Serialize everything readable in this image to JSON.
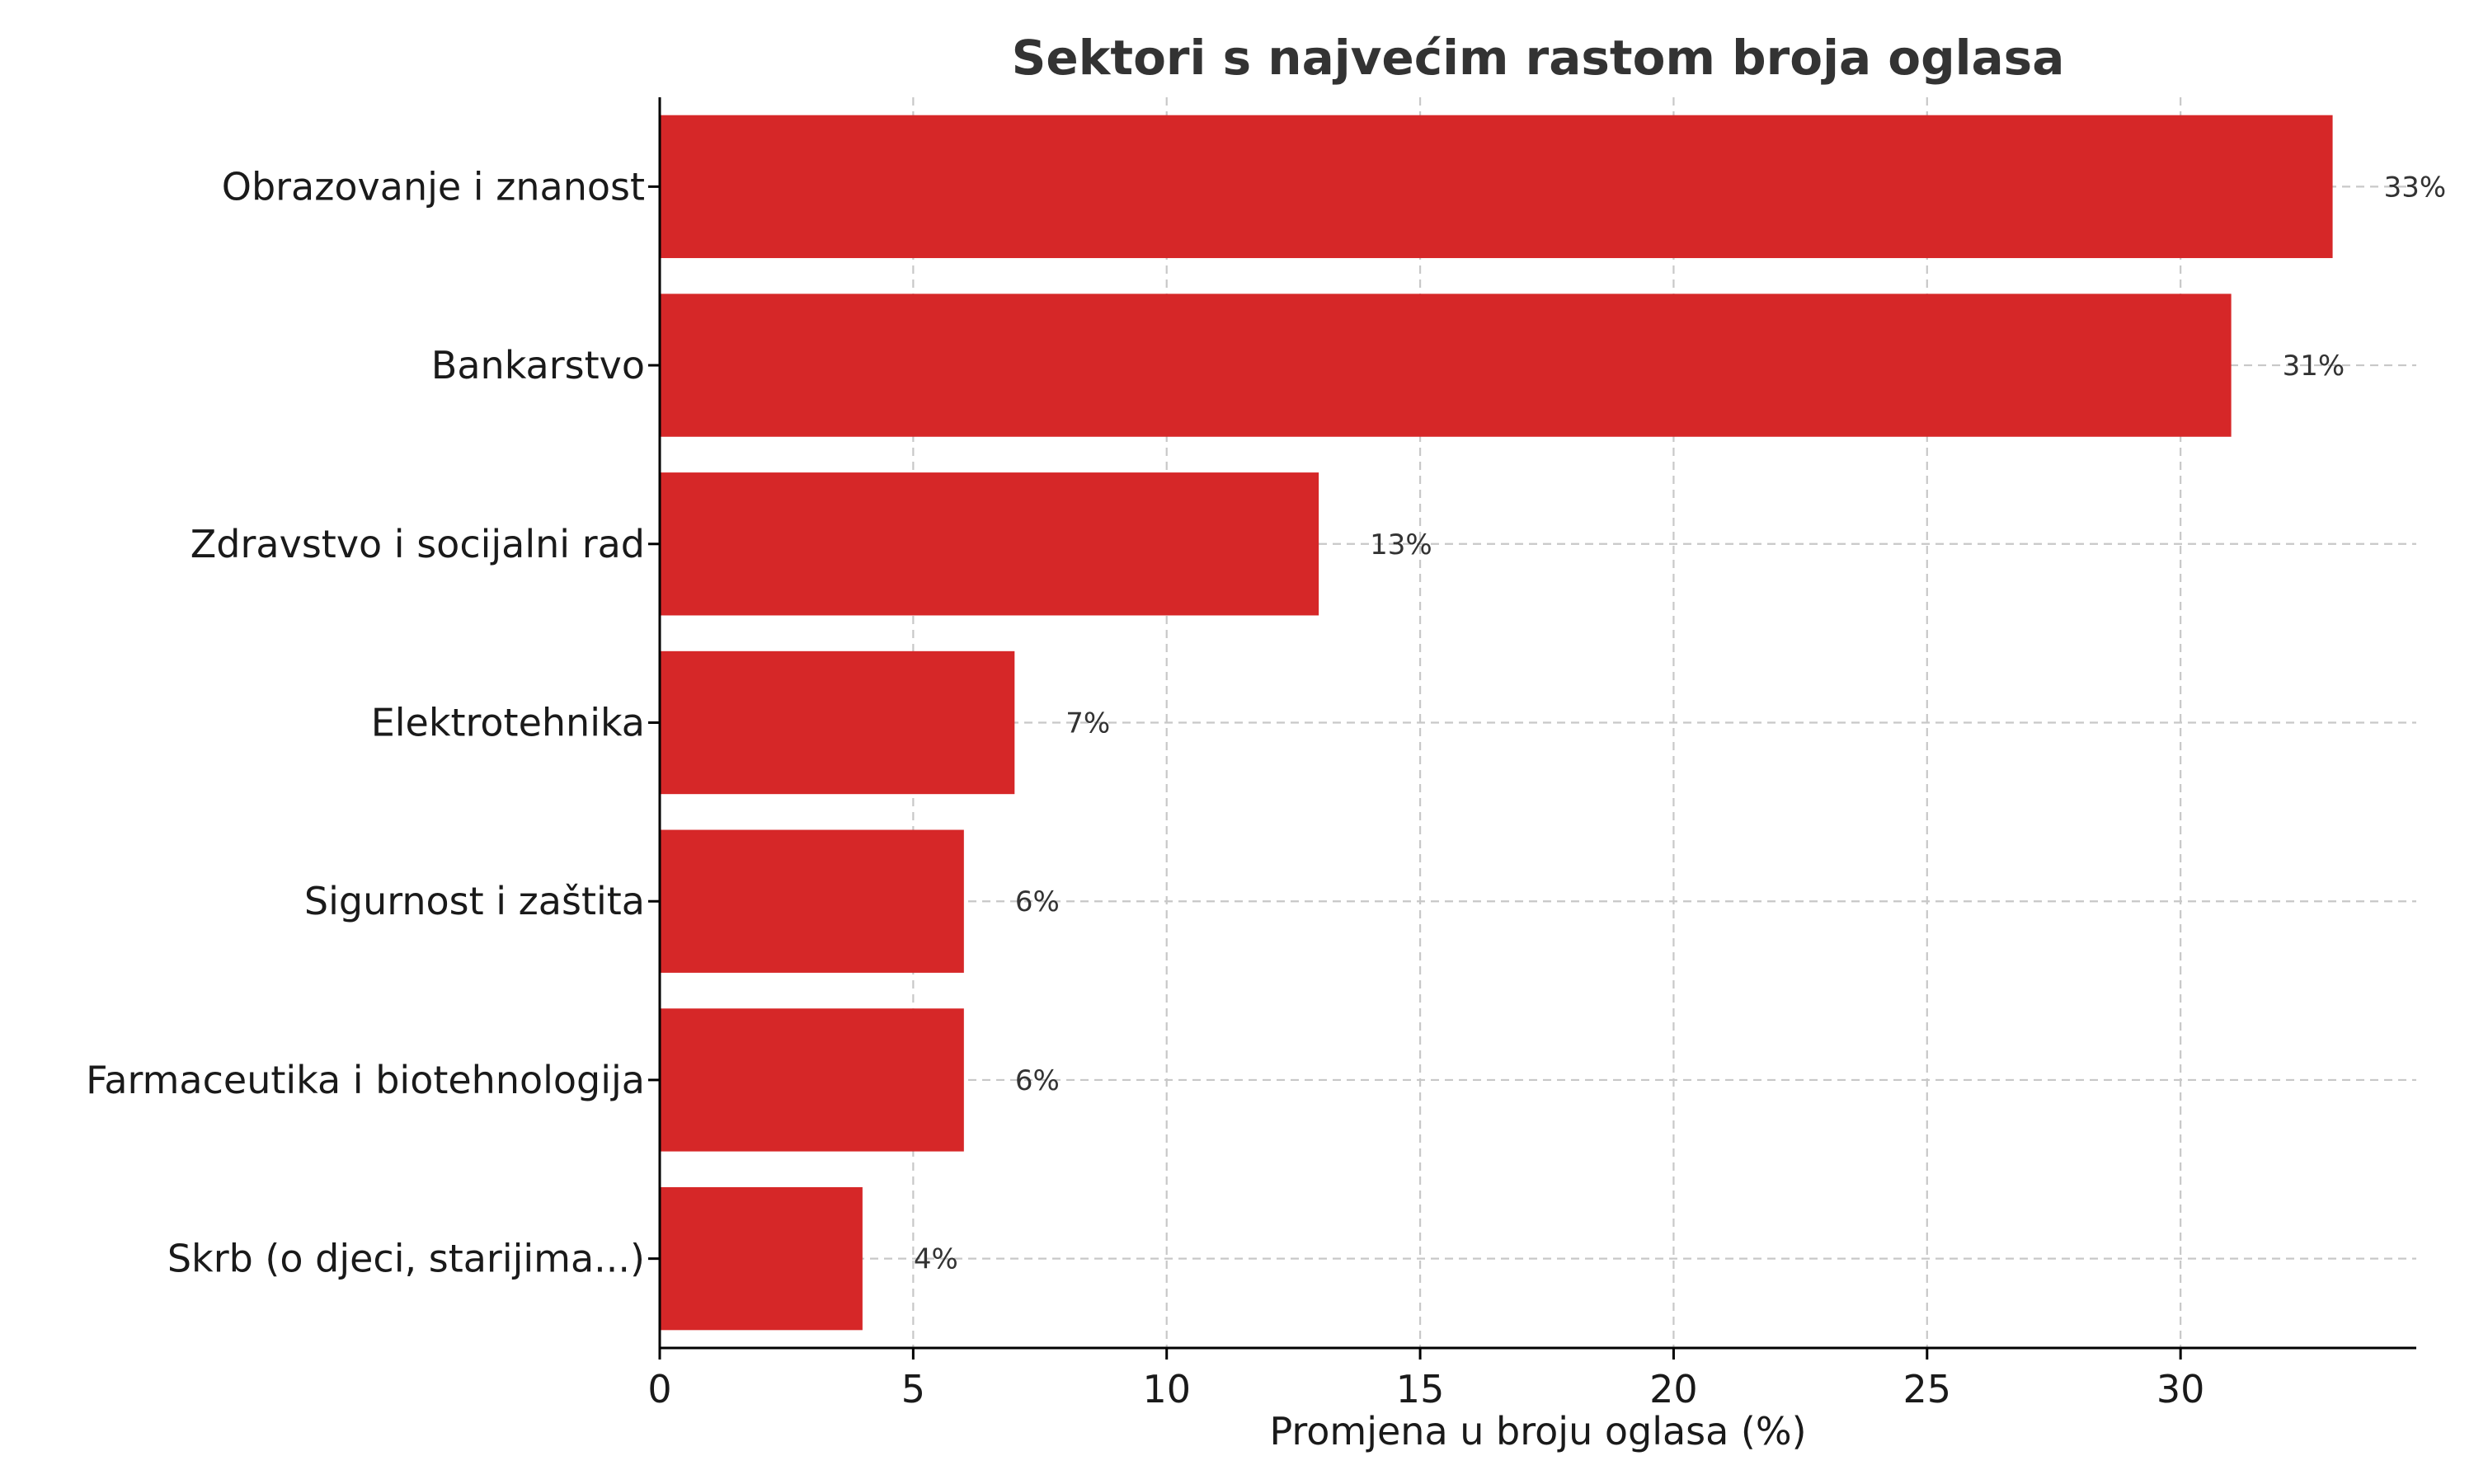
{
  "chart_data": {
    "type": "bar",
    "orientation": "horizontal",
    "title": "Sektori s najvećim rastom broja oglasa",
    "xlabel": "Promjena u broju oglasa (%)",
    "ylabel": "",
    "categories": [
      "Obrazovanje i znanost",
      "Bankarstvo",
      "Zdravstvo i socijalni rad",
      "Elektrotehnika",
      "Sigurnost i zaštita",
      "Farmaceutika i biotehnologija",
      "Skrb (o djeci, starijima...)"
    ],
    "values": [
      33,
      31,
      13,
      7,
      6,
      6,
      4
    ],
    "value_labels": [
      "33%",
      "31%",
      "13%",
      "7%",
      "6%",
      "6%",
      "4%"
    ],
    "xlim": [
      0,
      34.65
    ],
    "xticks": [
      0,
      5,
      10,
      15,
      20,
      25,
      30
    ],
    "xtick_labels": [
      "0",
      "5",
      "10",
      "15",
      "20",
      "25",
      "30"
    ],
    "grid": true,
    "bar_color": "#d62728"
  }
}
